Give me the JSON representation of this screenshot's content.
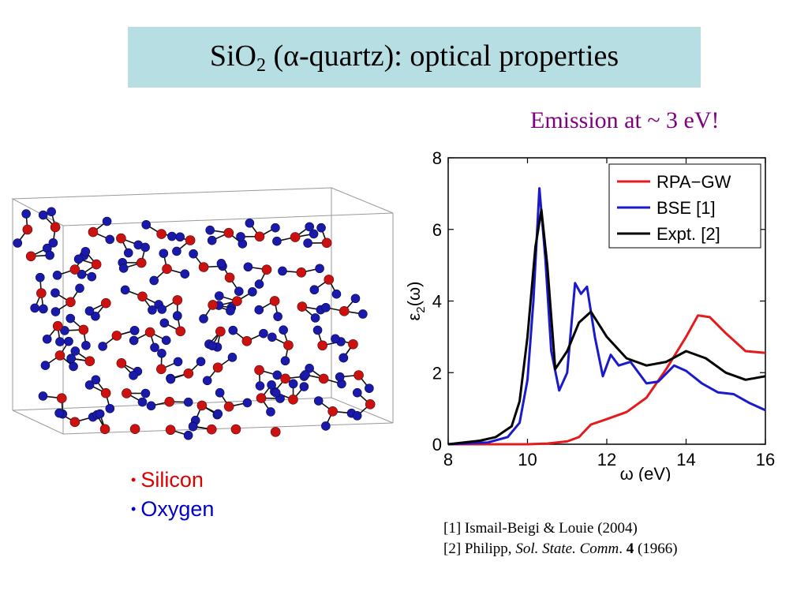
{
  "slide": {
    "title_main": "SiO",
    "title_sub": "2",
    "title_rest": " (α-quartz): optical properties",
    "emission_note": "Emission at ~ 3 eV!"
  },
  "legend": {
    "bullet": "•",
    "silicon_label": "Silicon",
    "oxygen_label": "Oxygen",
    "silicon_color": "#cc1111",
    "oxygen_color": "#1a1aaa"
  },
  "references": {
    "ref1": "[1] Ismail-Beigi & Louie (2004)",
    "ref2_prefix": "[2] Philipp, ",
    "ref2_journal": "Sol. State. Comm",
    "ref2_dot": ". ",
    "ref2_volume": "4",
    "ref2_year": " (1966)"
  },
  "chart_data": {
    "type": "line",
    "xlabel": "ω (eV)",
    "ylabel": "ε2(ω)",
    "xlim": [
      8,
      16
    ],
    "ylim": [
      0,
      8
    ],
    "xticks": [
      8,
      10,
      12,
      14,
      16
    ],
    "yticks": [
      0,
      2,
      4,
      6,
      8
    ],
    "legend_position": "top-right",
    "series": [
      {
        "name": "RPA−GW",
        "color": "#e41a1c",
        "points": [
          [
            8,
            0
          ],
          [
            9,
            0
          ],
          [
            10,
            0
          ],
          [
            10.5,
            0.02
          ],
          [
            11,
            0.08
          ],
          [
            11.3,
            0.2
          ],
          [
            11.6,
            0.55
          ],
          [
            12,
            0.7
          ],
          [
            12.5,
            0.9
          ],
          [
            13,
            1.3
          ],
          [
            13.5,
            2.1
          ],
          [
            14,
            3.0
          ],
          [
            14.3,
            3.6
          ],
          [
            14.6,
            3.55
          ],
          [
            15,
            3.1
          ],
          [
            15.5,
            2.6
          ],
          [
            16,
            2.55
          ]
        ]
      },
      {
        "name": "BSE  [1]",
        "color": "#1a1acc",
        "points": [
          [
            8,
            0
          ],
          [
            9,
            0.05
          ],
          [
            9.5,
            0.2
          ],
          [
            9.8,
            0.6
          ],
          [
            10.0,
            1.8
          ],
          [
            10.15,
            4.0
          ],
          [
            10.3,
            7.15
          ],
          [
            10.45,
            5.2
          ],
          [
            10.6,
            2.6
          ],
          [
            10.8,
            1.5
          ],
          [
            11.0,
            2.0
          ],
          [
            11.2,
            4.5
          ],
          [
            11.35,
            4.2
          ],
          [
            11.5,
            4.4
          ],
          [
            11.7,
            3.0
          ],
          [
            11.9,
            1.9
          ],
          [
            12.1,
            2.5
          ],
          [
            12.3,
            2.2
          ],
          [
            12.6,
            2.3
          ],
          [
            13.0,
            1.7
          ],
          [
            13.3,
            1.75
          ],
          [
            13.7,
            2.2
          ],
          [
            14.0,
            2.05
          ],
          [
            14.4,
            1.7
          ],
          [
            14.8,
            1.45
          ],
          [
            15.2,
            1.4
          ],
          [
            15.6,
            1.15
          ],
          [
            16,
            0.95
          ]
        ]
      },
      {
        "name": "Expt. [2]",
        "color": "#000000",
        "points": [
          [
            8,
            0
          ],
          [
            8.8,
            0.1
          ],
          [
            9.2,
            0.2
          ],
          [
            9.6,
            0.5
          ],
          [
            9.8,
            1.2
          ],
          [
            10.0,
            3.0
          ],
          [
            10.2,
            5.5
          ],
          [
            10.35,
            6.55
          ],
          [
            10.5,
            5.0
          ],
          [
            10.7,
            2.1
          ],
          [
            11.0,
            2.6
          ],
          [
            11.3,
            3.4
          ],
          [
            11.6,
            3.7
          ],
          [
            12.0,
            3.0
          ],
          [
            12.5,
            2.4
          ],
          [
            13.0,
            2.2
          ],
          [
            13.5,
            2.3
          ],
          [
            14.0,
            2.6
          ],
          [
            14.5,
            2.4
          ],
          [
            15.0,
            2.0
          ],
          [
            15.5,
            1.8
          ],
          [
            16,
            1.9
          ]
        ]
      }
    ]
  }
}
